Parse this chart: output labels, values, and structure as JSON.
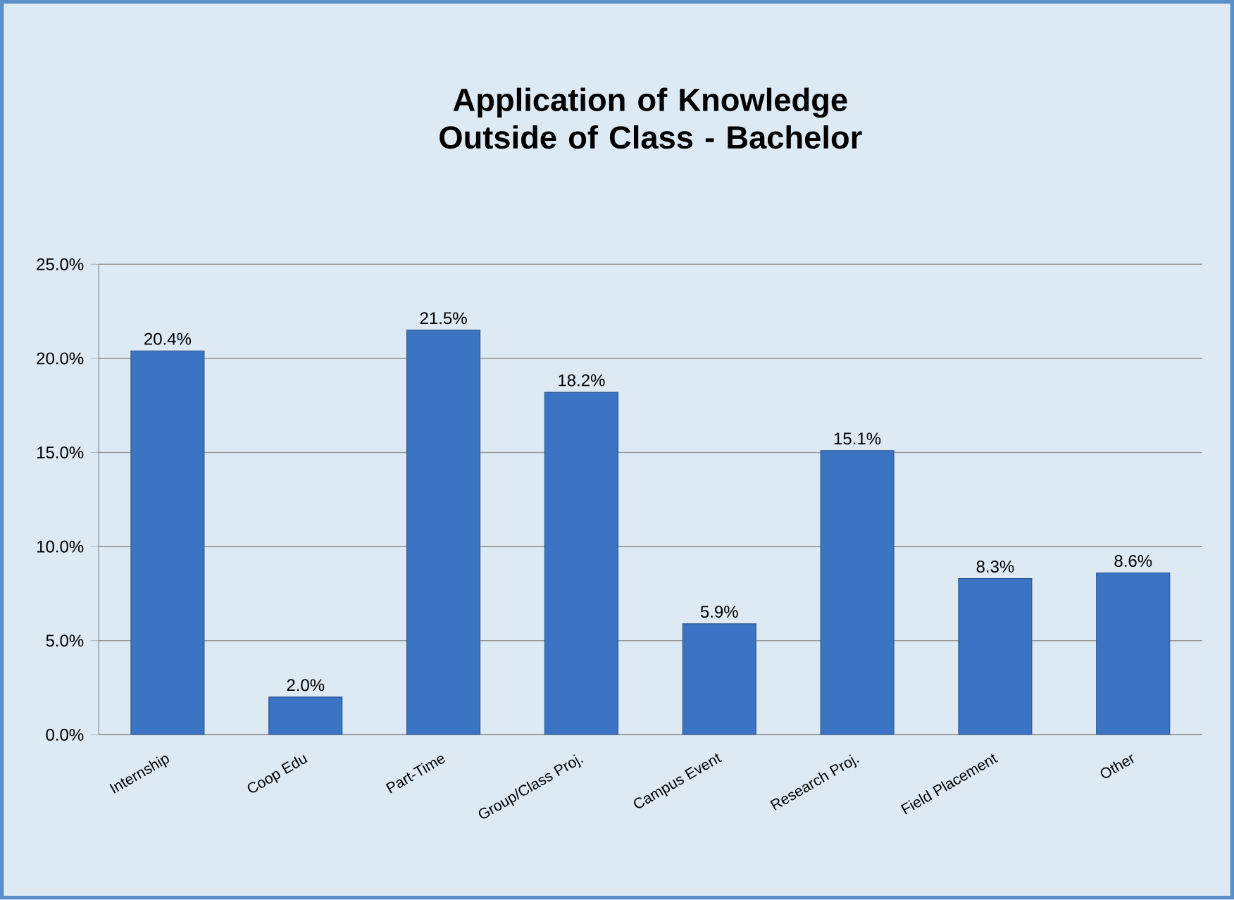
{
  "chart_data": {
    "type": "bar",
    "title": "Application of Knowledge Outside of Class - Bachelor",
    "categories": [
      "Internship",
      "Coop Edu",
      "Part-Time",
      "Group/Class Proj.",
      "Campus Event",
      "Research Proj.",
      "Field Placement",
      "Other"
    ],
    "values": [
      20.4,
      2.0,
      21.5,
      18.2,
      5.9,
      15.1,
      8.3,
      8.6
    ],
    "value_labels": [
      "20.4%",
      "2.0%",
      "21.5%",
      "18.2%",
      "5.9%",
      "15.1%",
      "8.3%",
      "8.6%"
    ],
    "color": "#3b74c2",
    "ylim": [
      0,
      25
    ],
    "yticks": [
      {
        "value": 0,
        "label": "0.0%"
      },
      {
        "value": 5,
        "label": "5.0%"
      },
      {
        "value": 10,
        "label": "10.0%"
      },
      {
        "value": 15,
        "label": "15.0%"
      },
      {
        "value": 20,
        "label": "20.0%"
      },
      {
        "value": 25,
        "label": "25.0%"
      }
    ],
    "grid": "y"
  }
}
